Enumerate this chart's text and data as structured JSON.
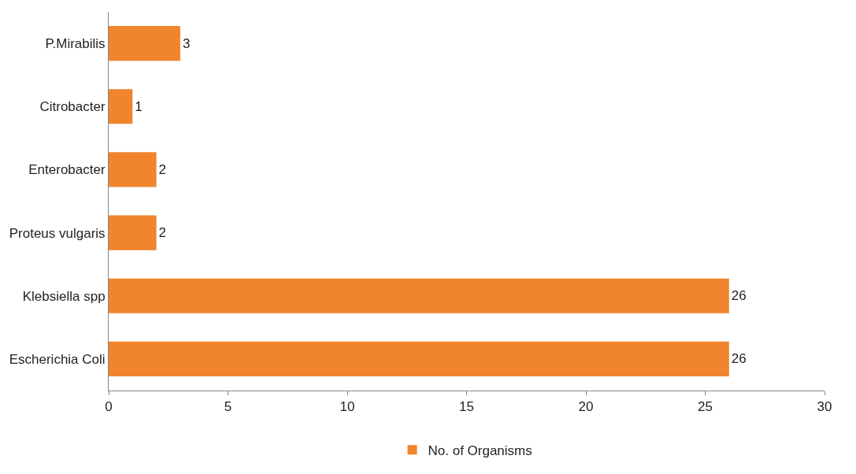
{
  "chart_data": {
    "type": "bar",
    "orientation": "horizontal",
    "categories": [
      "P.Mirabilis",
      "Citrobacter",
      "Enterobacter",
      "Proteus vulgaris",
      "Klebsiella spp",
      "Escherichia Coli"
    ],
    "series": [
      {
        "name": "No. of Organisms",
        "color": "#f0852d",
        "values": [
          3,
          1,
          2,
          2,
          26,
          26
        ]
      }
    ],
    "xlim": [
      0,
      30
    ],
    "xticks": [
      0,
      5,
      10,
      15,
      20,
      25,
      30
    ],
    "data_labels": true,
    "grid": false,
    "legend": "bottom"
  }
}
